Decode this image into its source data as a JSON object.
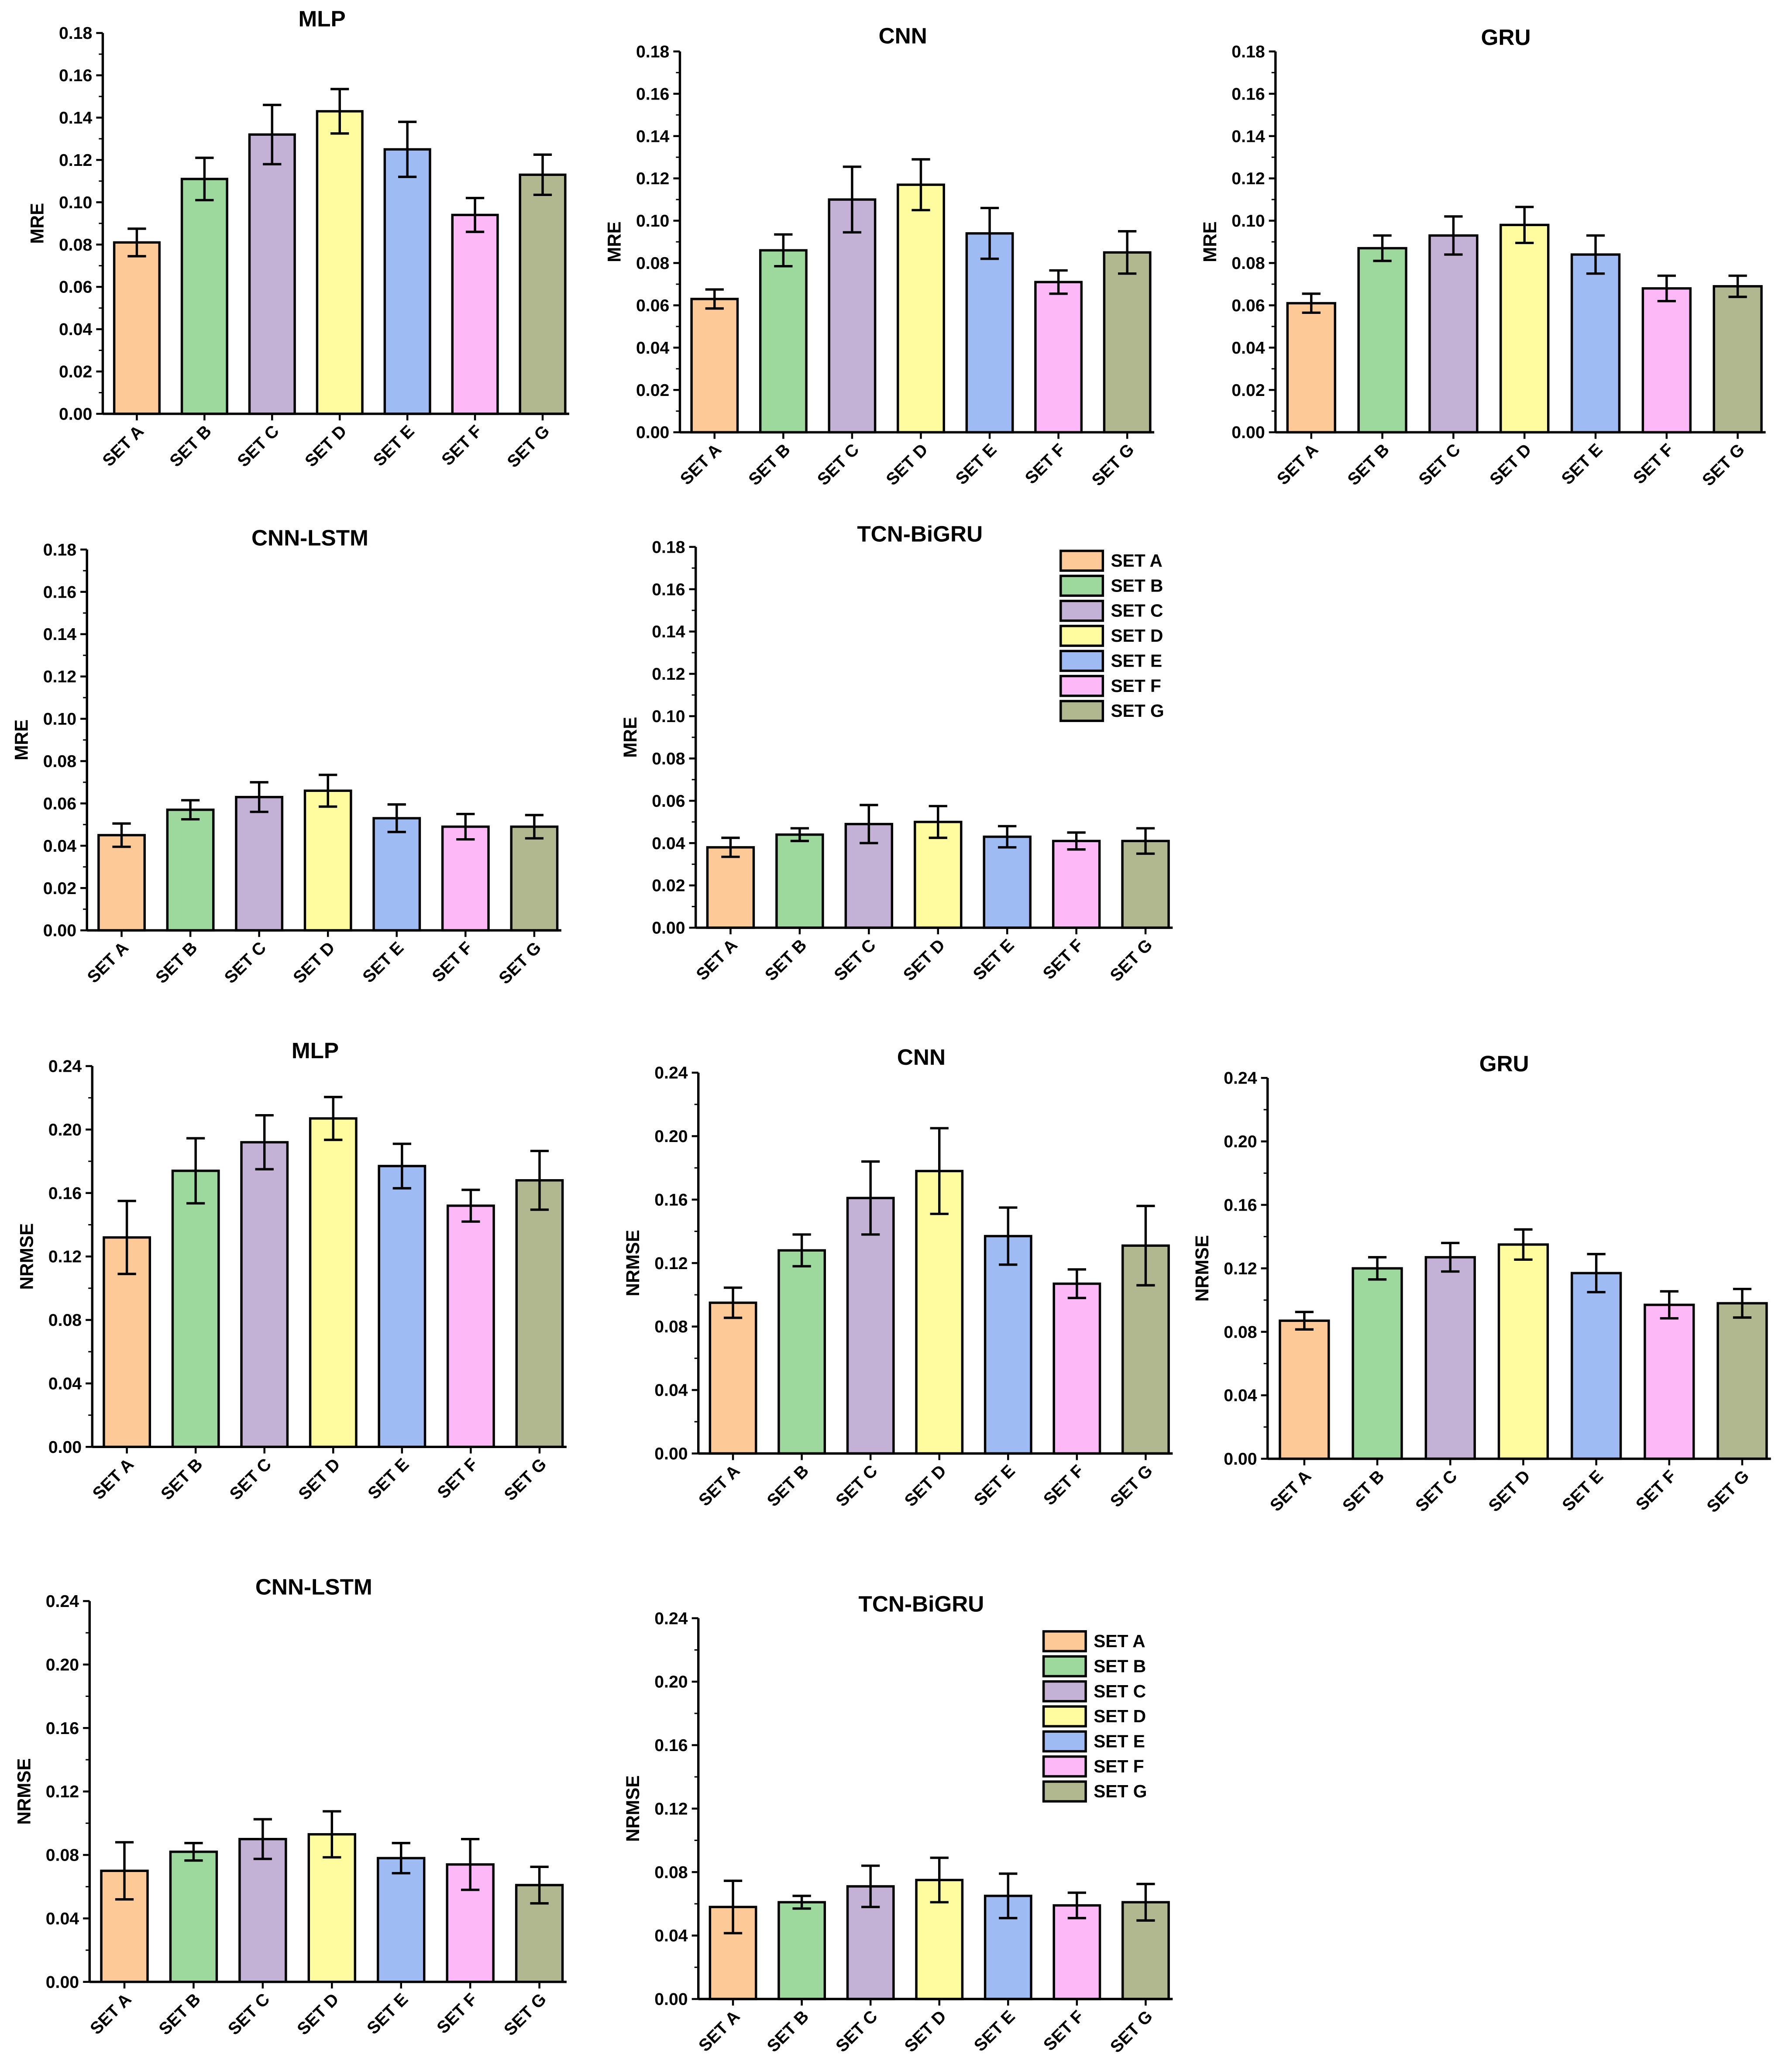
{
  "colors": {
    "SET A": "#FDC997",
    "SET B": "#9DD89C",
    "SET C": "#C3B1D6",
    "SET D": "#FFFCA0",
    "SET E": "#9EBCF3",
    "SET F": "#FDB9F7",
    "SET G": "#B1B78F"
  },
  "chart_data": [
    {
      "type": "bar",
      "title": "MLP",
      "ylabel": "MRE",
      "ylim": [
        0,
        0.18
      ],
      "yticks": [
        "0.00",
        "0.02",
        "0.04",
        "0.06",
        "0.08",
        "0.10",
        "0.12",
        "0.14",
        "0.16",
        "0.18"
      ],
      "categories": [
        "SET A",
        "SET B",
        "SET C",
        "SET D",
        "SET E",
        "SET F",
        "SET G"
      ],
      "values": [
        0.081,
        0.111,
        0.132,
        0.143,
        0.125,
        0.094,
        0.113
      ],
      "errors": [
        0.0065,
        0.01,
        0.014,
        0.0105,
        0.013,
        0.008,
        0.0095
      ],
      "legend": false
    },
    {
      "type": "bar",
      "title": "CNN",
      "ylabel": "MRE",
      "ylim": [
        0,
        0.18
      ],
      "yticks": [
        "0.00",
        "0.02",
        "0.04",
        "0.06",
        "0.08",
        "0.10",
        "0.12",
        "0.14",
        "0.16",
        "0.18"
      ],
      "categories": [
        "SET A",
        "SET B",
        "SET C",
        "SET D",
        "SET E",
        "SET F",
        "SET G"
      ],
      "values": [
        0.063,
        0.086,
        0.11,
        0.117,
        0.094,
        0.071,
        0.085
      ],
      "errors": [
        0.0045,
        0.0075,
        0.0155,
        0.012,
        0.012,
        0.0055,
        0.01
      ],
      "legend": false
    },
    {
      "type": "bar",
      "title": "GRU",
      "ylabel": "MRE",
      "ylim": [
        0,
        0.18
      ],
      "yticks": [
        "0.00",
        "0.02",
        "0.04",
        "0.06",
        "0.08",
        "0.10",
        "0.12",
        "0.14",
        "0.16",
        "0.18"
      ],
      "categories": [
        "SET A",
        "SET B",
        "SET C",
        "SET D",
        "SET E",
        "SET F",
        "SET G"
      ],
      "values": [
        0.061,
        0.087,
        0.093,
        0.098,
        0.084,
        0.068,
        0.069
      ],
      "errors": [
        0.0045,
        0.006,
        0.009,
        0.0085,
        0.009,
        0.006,
        0.005
      ],
      "legend": false
    },
    {
      "type": "bar",
      "title": "CNN-LSTM",
      "ylabel": "MRE",
      "ylim": [
        0,
        0.18
      ],
      "yticks": [
        "0.00",
        "0.02",
        "0.04",
        "0.06",
        "0.08",
        "0.10",
        "0.12",
        "0.14",
        "0.16",
        "0.18"
      ],
      "categories": [
        "SET A",
        "SET B",
        "SET C",
        "SET D",
        "SET E",
        "SET F",
        "SET G"
      ],
      "values": [
        0.045,
        0.057,
        0.063,
        0.066,
        0.053,
        0.049,
        0.049
      ],
      "errors": [
        0.0055,
        0.0045,
        0.007,
        0.0075,
        0.0065,
        0.006,
        0.0055
      ],
      "legend": false
    },
    {
      "type": "bar",
      "title": "TCN-BiGRU",
      "ylabel": "MRE",
      "ylim": [
        0,
        0.18
      ],
      "yticks": [
        "0.00",
        "0.02",
        "0.04",
        "0.06",
        "0.08",
        "0.10",
        "0.12",
        "0.14",
        "0.16",
        "0.18"
      ],
      "categories": [
        "SET A",
        "SET B",
        "SET C",
        "SET D",
        "SET E",
        "SET F",
        "SET G"
      ],
      "values": [
        0.038,
        0.044,
        0.049,
        0.05,
        0.043,
        0.041,
        0.041
      ],
      "errors": [
        0.0045,
        0.003,
        0.009,
        0.0075,
        0.005,
        0.004,
        0.006
      ],
      "legend": true
    },
    {
      "type": "bar",
      "title": "MLP",
      "ylabel": "NRMSE",
      "ylim": [
        0,
        0.24
      ],
      "yticks": [
        "0.00",
        "0.04",
        "0.08",
        "0.12",
        "0.16",
        "0.20",
        "0.24"
      ],
      "categories": [
        "SET A",
        "SET B",
        "SET C",
        "SET D",
        "SET E",
        "SET F",
        "SET G"
      ],
      "values": [
        0.132,
        0.174,
        0.192,
        0.207,
        0.177,
        0.152,
        0.168
      ],
      "errors": [
        0.023,
        0.0205,
        0.017,
        0.0135,
        0.014,
        0.01,
        0.0185
      ],
      "legend": false
    },
    {
      "type": "bar",
      "title": "CNN",
      "ylabel": "NRMSE",
      "ylim": [
        0,
        0.24
      ],
      "yticks": [
        "0.00",
        "0.04",
        "0.08",
        "0.12",
        "0.16",
        "0.20",
        "0.24"
      ],
      "categories": [
        "SET A",
        "SET B",
        "SET C",
        "SET D",
        "SET E",
        "SET F",
        "SET G"
      ],
      "values": [
        0.095,
        0.128,
        0.161,
        0.178,
        0.137,
        0.107,
        0.131
      ],
      "errors": [
        0.0095,
        0.01,
        0.023,
        0.027,
        0.018,
        0.009,
        0.025
      ],
      "legend": false
    },
    {
      "type": "bar",
      "title": "GRU",
      "ylabel": "NRMSE",
      "ylim": [
        0,
        0.24
      ],
      "yticks": [
        "0.00",
        "0.04",
        "0.08",
        "0.12",
        "0.16",
        "0.20",
        "0.24"
      ],
      "categories": [
        "SET A",
        "SET B",
        "SET C",
        "SET D",
        "SET E",
        "SET F",
        "SET G"
      ],
      "values": [
        0.087,
        0.12,
        0.127,
        0.135,
        0.117,
        0.097,
        0.098
      ],
      "errors": [
        0.0055,
        0.007,
        0.009,
        0.0095,
        0.012,
        0.0085,
        0.009
      ],
      "legend": false
    },
    {
      "type": "bar",
      "title": "CNN-LSTM",
      "ylabel": "NRMSE",
      "ylim": [
        0,
        0.24
      ],
      "yticks": [
        "0.00",
        "0.04",
        "0.08",
        "0.12",
        "0.16",
        "0.20",
        "0.24"
      ],
      "categories": [
        "SET A",
        "SET B",
        "SET C",
        "SET D",
        "SET E",
        "SET F",
        "SET G"
      ],
      "values": [
        0.07,
        0.082,
        0.09,
        0.093,
        0.078,
        0.074,
        0.061
      ],
      "errors": [
        0.018,
        0.0055,
        0.0125,
        0.0145,
        0.0095,
        0.016,
        0.0115
      ],
      "legend": false
    },
    {
      "type": "bar",
      "title": "TCN-BiGRU",
      "ylabel": "NRMSE",
      "ylim": [
        0,
        0.24
      ],
      "yticks": [
        "0.00",
        "0.04",
        "0.08",
        "0.12",
        "0.16",
        "0.20",
        "0.24"
      ],
      "categories": [
        "SET A",
        "SET B",
        "SET C",
        "SET D",
        "SET E",
        "SET F",
        "SET G"
      ],
      "values": [
        0.058,
        0.061,
        0.071,
        0.075,
        0.065,
        0.059,
        0.061
      ],
      "errors": [
        0.0165,
        0.004,
        0.013,
        0.014,
        0.014,
        0.008,
        0.0115
      ],
      "legend": true
    }
  ]
}
